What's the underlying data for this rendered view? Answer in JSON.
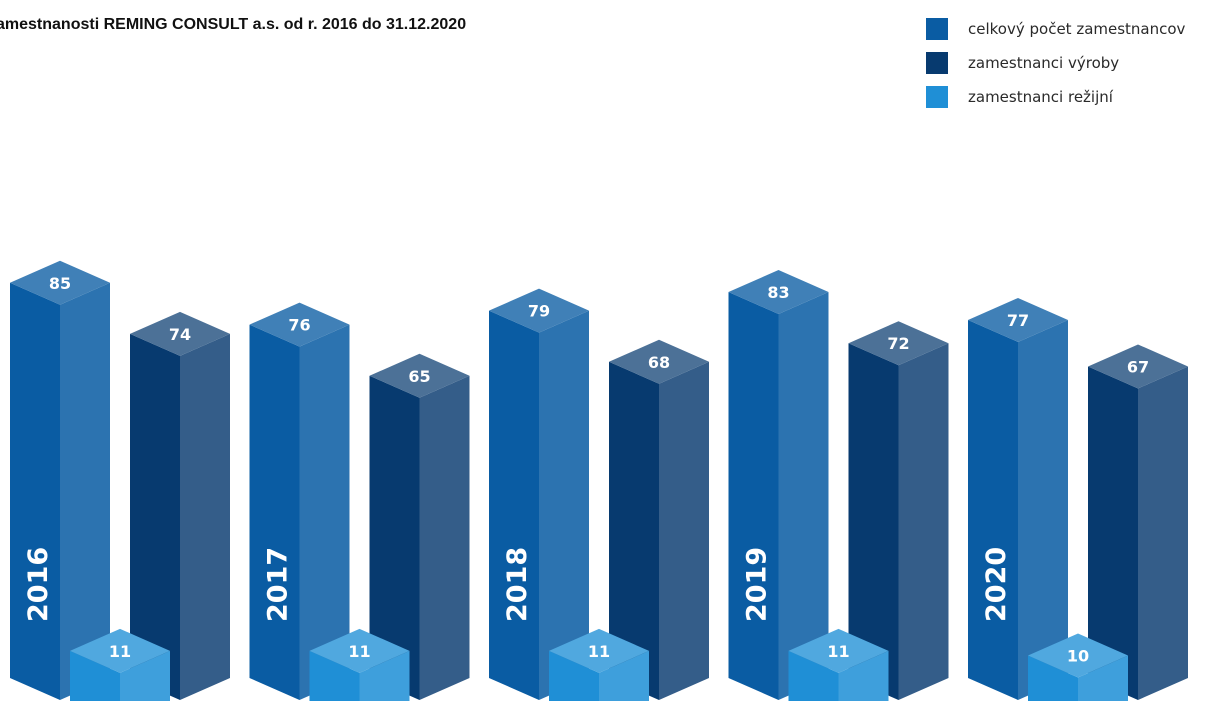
{
  "chart_data": {
    "type": "bar",
    "title": "zamestnanosti REMING CONSULT a.s. od r. 2016 do 31.12.2020",
    "categories": [
      "2016",
      "2017",
      "2018",
      "2019",
      "2020"
    ],
    "series": [
      {
        "name": "celkový počet zamestnancov",
        "values": [
          85,
          76,
          79,
          83,
          77
        ],
        "color": "#0a5ca3"
      },
      {
        "name": "zamestnanci výroby",
        "values": [
          74,
          65,
          68,
          72,
          67
        ],
        "color": "#073a6f"
      },
      {
        "name": "zamestnanci režijní",
        "values": [
          11,
          11,
          11,
          11,
          10
        ],
        "color": "#1f8fd6"
      }
    ],
    "style": "3d-column",
    "legend_position": "top-right",
    "grid": false,
    "axes_visible": false
  }
}
